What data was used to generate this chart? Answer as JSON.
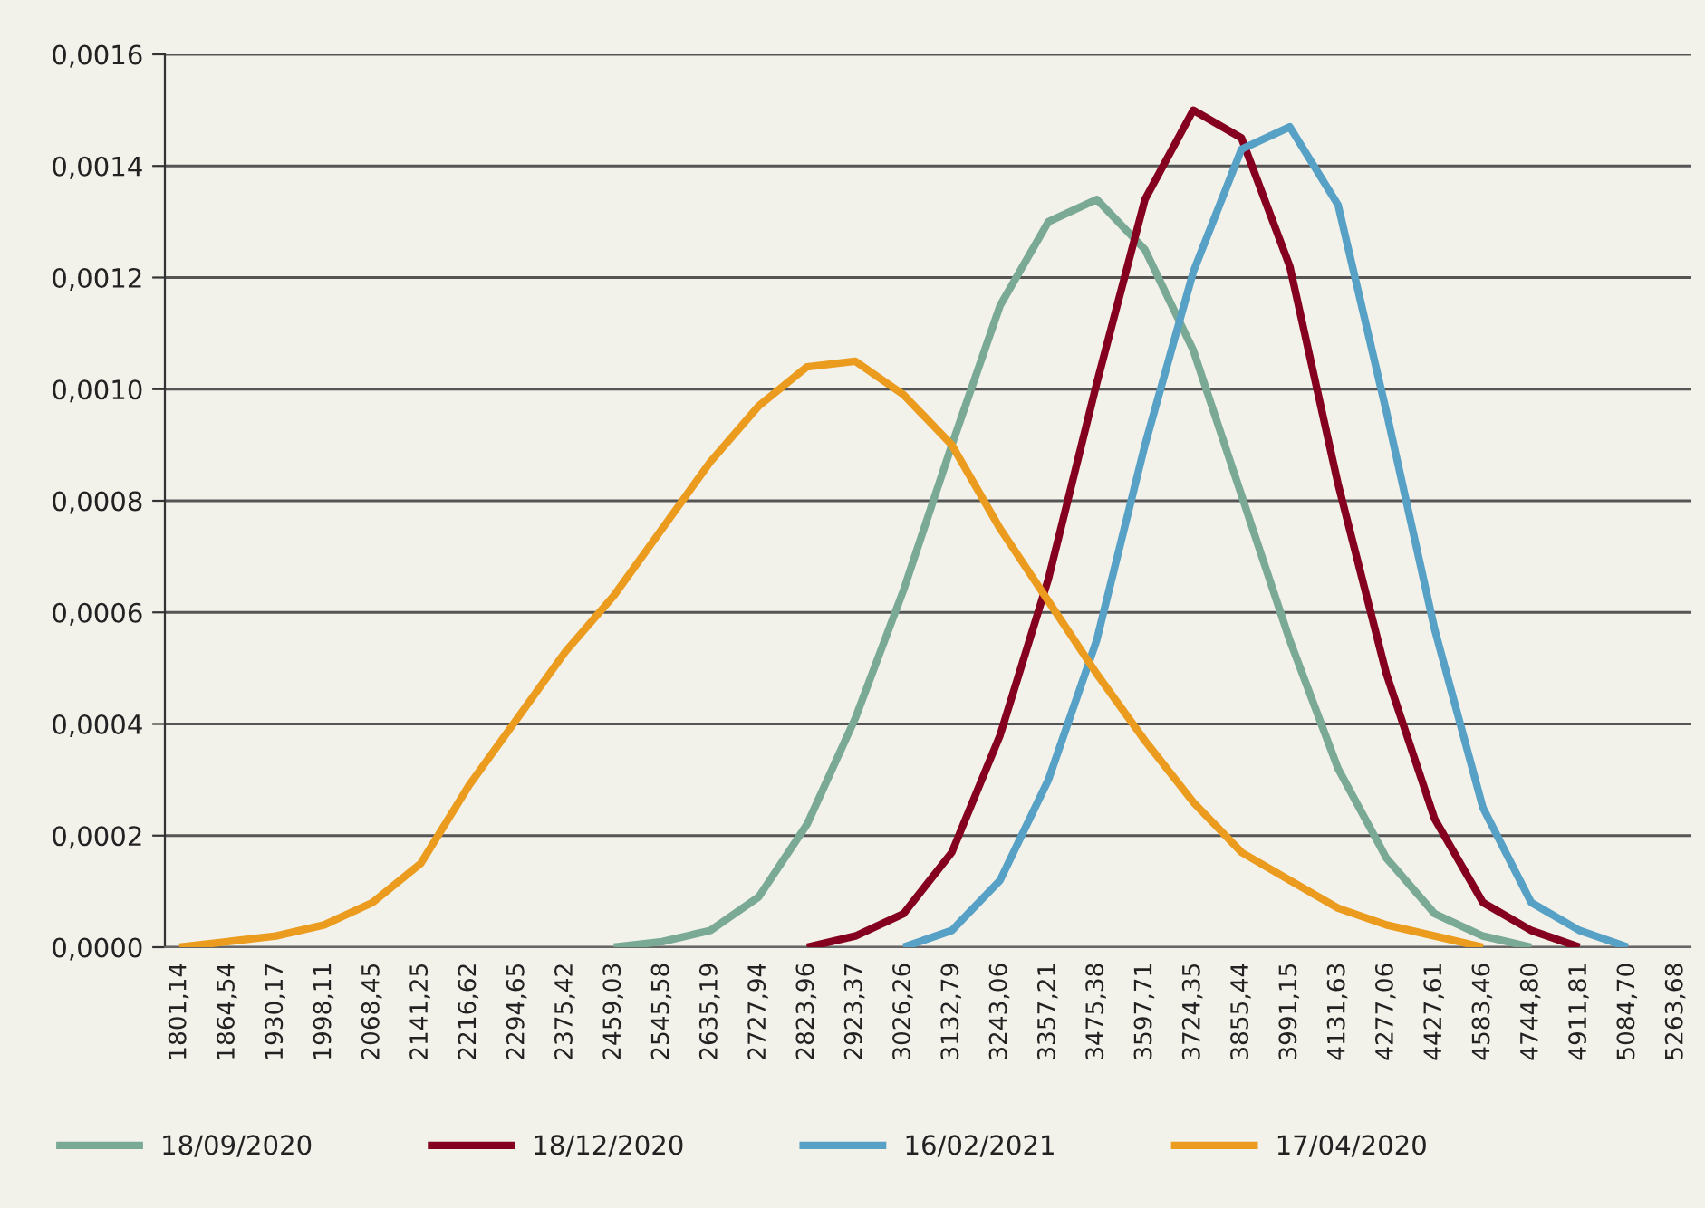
{
  "chart_data": {
    "type": "line",
    "categories": [
      "1801,14",
      "1864,54",
      "1930,17",
      "1998,11",
      "2068,45",
      "2141,25",
      "2216,62",
      "2294,65",
      "2375,42",
      "2459,03",
      "2545,58",
      "2635,19",
      "2727,94",
      "2823,96",
      "2923,37",
      "3026,26",
      "3132,79",
      "3243,06",
      "3357,21",
      "3475,38",
      "3597,71",
      "3724,35",
      "3855,44",
      "3991,15",
      "4131,63",
      "4277,06",
      "4427,61",
      "4583,46",
      "4744,80",
      "4911,81",
      "5084,70",
      "5263,68"
    ],
    "series": [
      {
        "name": "18/09/2020",
        "color": "#7aaa96",
        "values": [
          null,
          null,
          null,
          null,
          null,
          null,
          null,
          null,
          null,
          0,
          1e-05,
          3e-05,
          9e-05,
          0.00022,
          0.00041,
          0.00064,
          0.0009,
          0.00115,
          0.0013,
          0.00134,
          0.00125,
          0.00107,
          0.00081,
          0.00055,
          0.00032,
          0.00016,
          6e-05,
          2e-05,
          0,
          null,
          null,
          null
        ]
      },
      {
        "name": "18/12/2020",
        "color": "#85001f",
        "values": [
          null,
          null,
          null,
          null,
          null,
          null,
          null,
          null,
          null,
          null,
          null,
          null,
          null,
          0,
          2e-05,
          6e-05,
          0.00017,
          0.00038,
          0.00066,
          0.00101,
          0.00134,
          0.0015,
          0.00145,
          0.00122,
          0.00083,
          0.00049,
          0.00023,
          8e-05,
          3e-05,
          0,
          null,
          null
        ]
      },
      {
        "name": "16/02/2021",
        "color": "#56a1c5",
        "values": [
          null,
          null,
          null,
          null,
          null,
          null,
          null,
          null,
          null,
          null,
          null,
          null,
          null,
          null,
          null,
          0,
          3e-05,
          0.00012,
          0.0003,
          0.00055,
          0.0009,
          0.00121,
          0.00143,
          0.00147,
          0.00133,
          0.00096,
          0.00057,
          0.00025,
          8e-05,
          3e-05,
          0,
          null
        ]
      },
      {
        "name": "17/04/2020",
        "color": "#eb9c1e",
        "values": [
          0,
          1e-05,
          2e-05,
          4e-05,
          8e-05,
          0.00015,
          0.00029,
          0.00041,
          0.00053,
          0.00063,
          0.00075,
          0.00087,
          0.00097,
          0.00104,
          0.00105,
          0.00099,
          0.0009,
          0.00075,
          0.00062,
          0.00049,
          0.00037,
          0.00026,
          0.00017,
          0.00012,
          7e-05,
          4e-05,
          2e-05,
          0,
          null,
          null,
          null,
          null
        ]
      }
    ],
    "ylim": [
      0,
      0.0016
    ],
    "yticks": [
      {
        "value": 0,
        "label": "0,0000"
      },
      {
        "value": 0.0002,
        "label": "0,0002"
      },
      {
        "value": 0.0004,
        "label": "0,0004"
      },
      {
        "value": 0.0006,
        "label": "0,0006"
      },
      {
        "value": 0.0008,
        "label": "0,0008"
      },
      {
        "value": 0.001,
        "label": "0,0010"
      },
      {
        "value": 0.0012,
        "label": "0,0012"
      },
      {
        "value": 0.0014,
        "label": "0,0014"
      },
      {
        "value": 0.0016,
        "label": "0,0016"
      }
    ],
    "grid": "y",
    "legend": "bottom",
    "marker": "none",
    "line_style": "solid"
  }
}
